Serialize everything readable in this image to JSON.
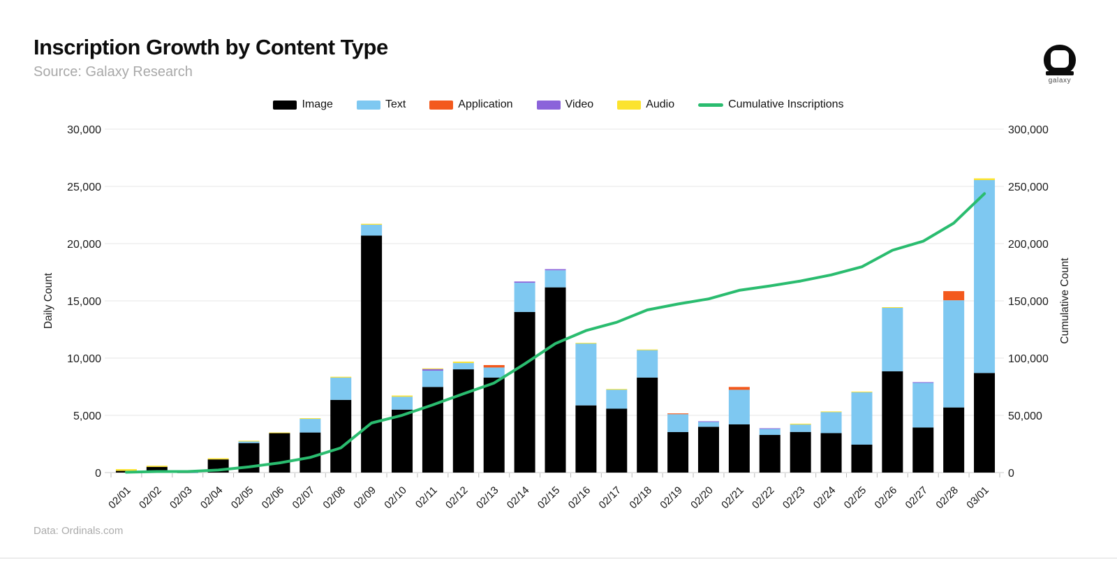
{
  "header": {
    "title": "Inscription Growth by Content Type",
    "source": "Source: Galaxy Research",
    "logo_text": "galaxy"
  },
  "footer": {
    "text": "Data: Ordinals.com"
  },
  "chart_data": {
    "type": "bar",
    "subtype": "stacked-bar-with-line",
    "title": "Inscription Growth by Content Type",
    "categories": [
      "02/01",
      "02/02",
      "02/03",
      "02/04",
      "02/05",
      "02/06",
      "02/07",
      "02/08",
      "02/09",
      "02/10",
      "02/11",
      "02/12",
      "02/13",
      "02/14",
      "02/15",
      "02/16",
      "02/17",
      "02/18",
      "02/19",
      "02/20",
      "02/21",
      "02/22",
      "02/23",
      "02/24",
      "02/25",
      "02/26",
      "02/27",
      "02/28",
      "03/01"
    ],
    "series": [
      {
        "name": "Image",
        "color": "#000000",
        "values": [
          150,
          500,
          20,
          1150,
          2580,
          3450,
          3500,
          6350,
          20700,
          5500,
          7480,
          9020,
          8300,
          14030,
          16180,
          5870,
          5580,
          8300,
          3540,
          4000,
          4210,
          3290,
          3550,
          3450,
          2440,
          8850,
          3940,
          5690,
          8700
        ]
      },
      {
        "name": "Text",
        "color": "#7ec8f1",
        "values": [
          0,
          0,
          10,
          0,
          150,
          0,
          1200,
          1950,
          950,
          1130,
          1420,
          550,
          880,
          2550,
          1490,
          5410,
          1670,
          2400,
          1560,
          420,
          3020,
          530,
          650,
          1840,
          4580,
          5550,
          3910,
          9360,
          16850
        ]
      },
      {
        "name": "Application",
        "color": "#f3591d",
        "values": [
          0,
          0,
          0,
          0,
          0,
          0,
          0,
          0,
          0,
          0,
          0,
          0,
          210,
          0,
          0,
          0,
          0,
          0,
          70,
          0,
          250,
          0,
          0,
          0,
          0,
          0,
          0,
          800,
          0
        ]
      },
      {
        "name": "Video",
        "color": "#8b63da",
        "values": [
          0,
          0,
          0,
          0,
          0,
          0,
          0,
          0,
          0,
          0,
          150,
          0,
          0,
          110,
          100,
          0,
          0,
          0,
          0,
          60,
          0,
          50,
          0,
          0,
          0,
          0,
          50,
          0,
          0
        ]
      },
      {
        "name": "Audio",
        "color": "#fce32e",
        "values": [
          150,
          100,
          0,
          100,
          50,
          50,
          50,
          70,
          80,
          100,
          50,
          120,
          0,
          0,
          0,
          50,
          50,
          50,
          0,
          0,
          0,
          0,
          70,
          50,
          50,
          50,
          0,
          0,
          150
        ]
      }
    ],
    "line_series": {
      "name": "Cumulative Inscriptions",
      "color": "#2abc6f",
      "axis": "right",
      "values": [
        300,
        900,
        930,
        2180,
        4960,
        8460,
        13210,
        21580,
        43310,
        50040,
        59140,
        68830,
        78220,
        94910,
        112680,
        124010,
        131310,
        142060,
        147230,
        151710,
        159190,
        163060,
        167330,
        172670,
        179740,
        194190,
        202090,
        217940,
        243640
      ]
    },
    "left_axis": {
      "label": "Daily Count",
      "min": 0,
      "max": 30000,
      "step": 5000,
      "tick_labels": [
        "0",
        "5,000",
        "10,000",
        "15,000",
        "20,000",
        "25,000",
        "30,000"
      ]
    },
    "right_axis": {
      "label": "Cumulative Count",
      "min": 0,
      "max": 300000,
      "step": 50000,
      "tick_labels": [
        "0",
        "50,000",
        "100,000",
        "150,000",
        "200,000",
        "250,000",
        "300,000"
      ]
    },
    "stacked": true,
    "grid": true,
    "legend_position": "top",
    "grid_color": "#e4e4e4",
    "tick_color": "#b9b9b9",
    "text_color": "#1a1a1a"
  }
}
